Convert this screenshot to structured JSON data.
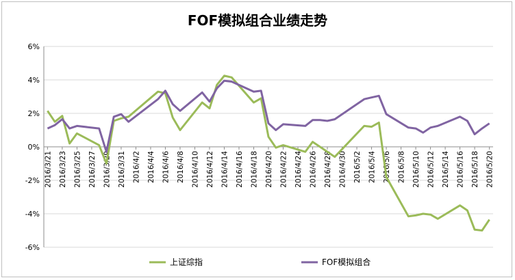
{
  "chart_data": {
    "type": "line",
    "title": "FOF模拟组合业绩走势",
    "xlabel": "",
    "ylabel": "",
    "ylim": [
      -6,
      6
    ],
    "y_ticks": [
      "6%",
      "4%",
      "2%",
      "0%",
      "-2%",
      "-4%",
      "-6%"
    ],
    "y_tick_values": [
      6,
      4,
      2,
      0,
      -2,
      -4,
      -6
    ],
    "grid": "horizontal",
    "legend_position": "bottom",
    "x_tick_labels": [
      "2016/3/21",
      "2016/3/23",
      "2016/3/25",
      "2016/3/27",
      "2016/3/29",
      "2016/3/31",
      "2016/4/2",
      "2016/4/4",
      "2016/4/6",
      "2016/4/8",
      "2016/4/10",
      "2016/4/12",
      "2016/4/14",
      "2016/4/16",
      "2016/4/18",
      "2016/4/20",
      "2016/4/22",
      "2016/4/24",
      "2016/4/26",
      "2016/4/28",
      "2016/4/30",
      "2016/5/2",
      "2016/5/4",
      "2016/5/6",
      "2016/5/8",
      "2016/5/10",
      "2016/5/12",
      "2016/5/14",
      "2016/5/16",
      "2016/5/18",
      "2016/5/20"
    ],
    "x": [
      "2016/3/21",
      "2016/3/22",
      "2016/3/23",
      "2016/3/24",
      "2016/3/25",
      "2016/3/28",
      "2016/3/29",
      "2016/3/30",
      "2016/3/31",
      "2016/4/1",
      "2016/4/5",
      "2016/4/6",
      "2016/4/7",
      "2016/4/8",
      "2016/4/11",
      "2016/4/12",
      "2016/4/13",
      "2016/4/14",
      "2016/4/15",
      "2016/4/18",
      "2016/4/19",
      "2016/4/20",
      "2016/4/21",
      "2016/4/22",
      "2016/4/25",
      "2016/4/26",
      "2016/4/27",
      "2016/4/28",
      "2016/4/29",
      "2016/5/3",
      "2016/5/4",
      "2016/5/5",
      "2016/5/6",
      "2016/5/9",
      "2016/5/10",
      "2016/5/11",
      "2016/5/12",
      "2016/5/13",
      "2016/5/16",
      "2016/5/17",
      "2016/5/18",
      "2016/5/19",
      "2016/5/20"
    ],
    "series": [
      {
        "name": "上证综指",
        "color": "#9bbb59",
        "values": [
          2.15,
          1.5,
          1.85,
          0.2,
          0.8,
          0.1,
          -1.0,
          1.55,
          1.7,
          1.8,
          3.3,
          3.2,
          1.75,
          1.0,
          2.65,
          2.3,
          3.7,
          4.25,
          4.15,
          2.65,
          2.9,
          0.6,
          -0.05,
          0.1,
          -0.3,
          0.3,
          0.0,
          -0.3,
          -0.6,
          1.25,
          1.2,
          1.45,
          -1.8,
          -4.15,
          -4.1,
          -4.0,
          -4.05,
          -4.3,
          -3.5,
          -3.8,
          -4.95,
          -5.0,
          -4.35
        ]
      },
      {
        "name": "FOF模拟组合",
        "color": "#8064a2",
        "values": [
          1.1,
          1.3,
          1.65,
          1.1,
          1.25,
          1.1,
          -0.3,
          1.8,
          1.95,
          1.5,
          2.85,
          3.35,
          2.55,
          2.15,
          3.25,
          2.7,
          3.5,
          3.95,
          3.9,
          3.3,
          3.35,
          1.4,
          1.0,
          1.35,
          1.25,
          1.6,
          1.6,
          1.55,
          1.65,
          2.85,
          2.95,
          3.05,
          1.95,
          1.15,
          1.1,
          0.85,
          1.15,
          1.25,
          1.8,
          1.55,
          0.75,
          1.1,
          1.4
        ]
      }
    ]
  }
}
